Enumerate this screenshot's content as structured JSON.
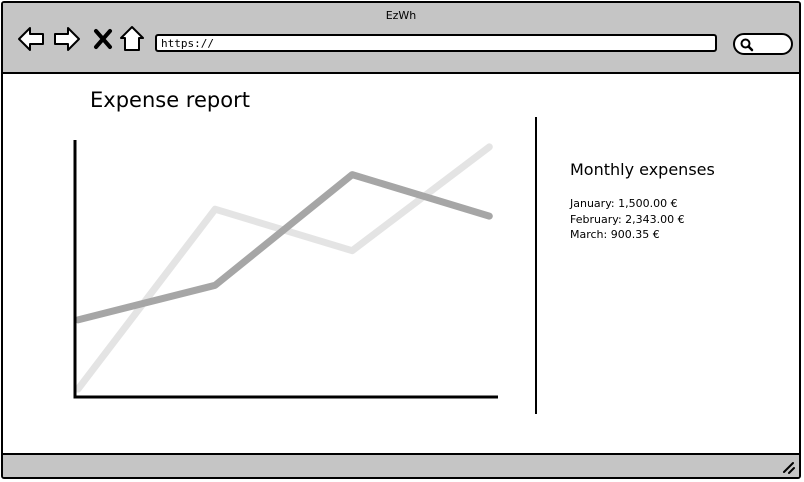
{
  "window": {
    "title": "EzWh"
  },
  "toolbar": {
    "back_icon": "arrow-left-icon",
    "forward_icon": "arrow-right-icon",
    "stop_icon": "close-icon",
    "home_icon": "home-icon",
    "url": "https://",
    "search_icon": "search-icon"
  },
  "page": {
    "title": "Expense report"
  },
  "chart_data": {
    "type": "line",
    "x": [
      0,
      1,
      2,
      3
    ],
    "series": [
      {
        "values": [
          0,
          5.2,
          4.0,
          7.0
        ],
        "color": "#e4e4e4"
      },
      {
        "values": [
          2.0,
          3.0,
          6.2,
          5.0
        ],
        "color": "#a6a6a6"
      }
    ],
    "xlim": [
      0,
      3.1
    ],
    "ylim": [
      -0.2,
      7.2
    ],
    "grid": false,
    "title": "",
    "xlabel": "",
    "ylabel": ""
  },
  "sidebar": {
    "title": "Monthly expenses",
    "items": [
      "January: 1,500.00 €",
      "February: 2,343.00 €",
      "March: 900.35 €"
    ]
  }
}
